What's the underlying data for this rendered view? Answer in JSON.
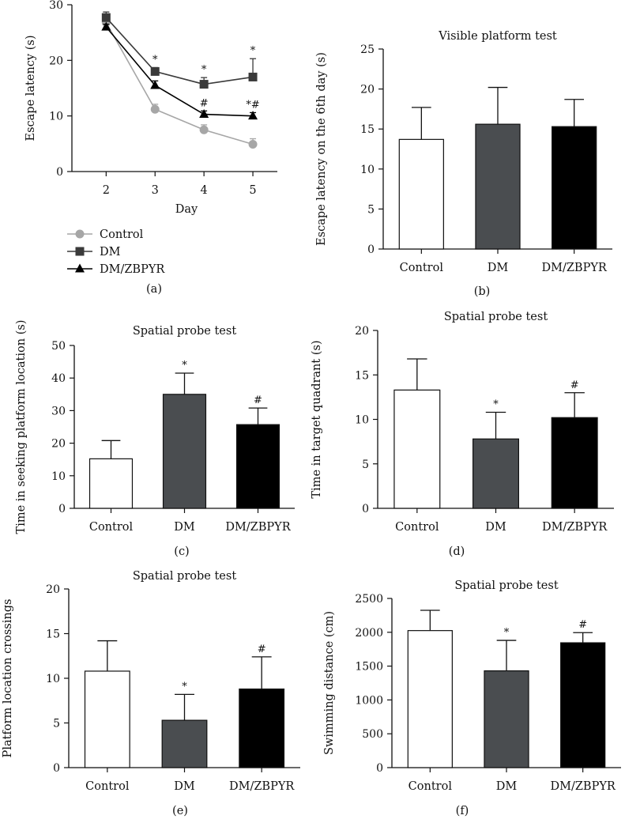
{
  "colors": {
    "control": "#a6a6a6",
    "dm": "#3a3a3a",
    "dmzbpyr": "#000000",
    "control_bar": "#ffffff",
    "dm_bar": "#4a4d50",
    "dmzbpyr_bar": "#000000",
    "axis": "#111111"
  },
  "chart_data": [
    {
      "id": "a",
      "type": "line",
      "panel_label": "(a)",
      "title": "",
      "xlabel": "Day",
      "ylabel": "Escape latency (s)",
      "x": [
        2,
        3,
        4,
        5
      ],
      "xlim": [
        1.3,
        5.5
      ],
      "ylim": [
        0,
        30
      ],
      "yticks": [
        0,
        10,
        20,
        30
      ],
      "legend_position": "bottom-left",
      "series": [
        {
          "name": "Control",
          "marker": "circle",
          "values": [
            26.8,
            11.2,
            7.5,
            4.9
          ],
          "err": [
            0.6,
            0.9,
            0.9,
            1.0
          ],
          "annotations": [
            "",
            "",
            "",
            ""
          ]
        },
        {
          "name": "DM",
          "marker": "square",
          "values": [
            27.7,
            18.0,
            15.7,
            17.0
          ],
          "err": [
            1.0,
            0.7,
            1.2,
            3.3
          ],
          "annotations": [
            "",
            "*",
            "*",
            "*"
          ]
        },
        {
          "name": "DM/ZBPYR",
          "marker": "triangle",
          "values": [
            26.0,
            15.5,
            10.3,
            10.0
          ],
          "err": [
            0.5,
            0.8,
            0.6,
            0.6
          ],
          "annotations": [
            "",
            "",
            "#",
            "*#"
          ]
        }
      ]
    },
    {
      "id": "b",
      "type": "bar",
      "panel_label": "(b)",
      "title": "Visible platform test",
      "ylabel": "Escape latency on the 6th day (s)",
      "categories": [
        "Control",
        "DM",
        "DM/ZBPYR"
      ],
      "values": [
        13.7,
        15.6,
        15.3
      ],
      "err": [
        4.0,
        4.6,
        3.4
      ],
      "annotations": [
        "",
        "",
        ""
      ],
      "ylim": [
        0,
        25
      ],
      "yticks": [
        0,
        5,
        10,
        15,
        20,
        25
      ]
    },
    {
      "id": "c",
      "type": "bar",
      "panel_label": "(c)",
      "title": "Spatial probe test",
      "ylabel": "Time in seeking platform location (s)",
      "categories": [
        "Control",
        "DM",
        "DM/ZBPYR"
      ],
      "values": [
        15.2,
        35.0,
        25.7
      ],
      "err": [
        5.6,
        6.5,
        5.1
      ],
      "annotations": [
        "",
        "*",
        "#"
      ],
      "ylim": [
        0,
        50
      ],
      "yticks": [
        0,
        10,
        20,
        30,
        40,
        50
      ]
    },
    {
      "id": "d",
      "type": "bar",
      "panel_label": "(d)",
      "title": "Spatial probe test",
      "ylabel": "Time in target quadrant (s)",
      "categories": [
        "Control",
        "DM",
        "DM/ZBPYR"
      ],
      "values": [
        13.3,
        7.8,
        10.2
      ],
      "err": [
        3.5,
        3.0,
        2.8
      ],
      "annotations": [
        "",
        "*",
        "#"
      ],
      "ylim": [
        0,
        20
      ],
      "yticks": [
        0,
        5,
        10,
        15,
        20
      ]
    },
    {
      "id": "e",
      "type": "bar",
      "panel_label": "(e)",
      "title": "Spatial probe test",
      "ylabel": "Platform location crossings",
      "categories": [
        "Control",
        "DM",
        "DM/ZBPYR"
      ],
      "values": [
        10.8,
        5.3,
        8.8
      ],
      "err": [
        3.4,
        2.9,
        3.6
      ],
      "annotations": [
        "",
        "*",
        "#"
      ],
      "ylim": [
        0,
        20
      ],
      "yticks": [
        0,
        5,
        10,
        15,
        20
      ]
    },
    {
      "id": "f",
      "type": "bar",
      "panel_label": "(f)",
      "title": "Spatial probe test",
      "ylabel": "Swimming distance (cm)",
      "categories": [
        "Control",
        "DM",
        "DM/ZBPYR"
      ],
      "values": [
        2025,
        1430,
        1845
      ],
      "err": [
        300,
        450,
        150
      ],
      "annotations": [
        "",
        "*",
        "#"
      ],
      "ylim": [
        0,
        2500
      ],
      "yticks": [
        0,
        500,
        1000,
        1500,
        2000,
        2500
      ]
    }
  ]
}
